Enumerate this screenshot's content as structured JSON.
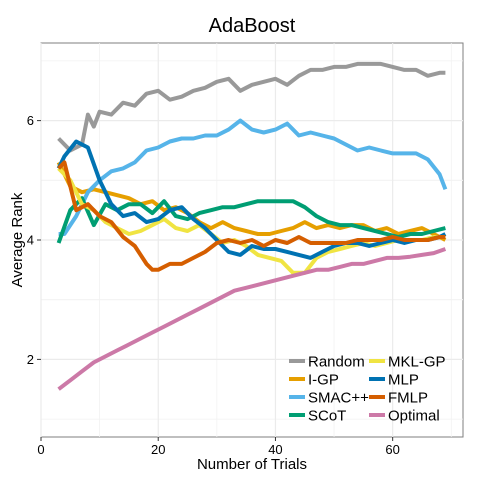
{
  "chart_data": {
    "type": "line",
    "title": "AdaBoost",
    "xlabel": "Number of Trials",
    "ylabel": "Average Rank",
    "xlim": [
      0,
      72
    ],
    "ylim": [
      0.7,
      7.3
    ],
    "xticks": [
      0,
      20,
      40,
      60
    ],
    "yticks": [
      2,
      4,
      6
    ],
    "grid": true,
    "legend_position": "bottom-right",
    "series": [
      {
        "name": "Random",
        "color": "#999999",
        "x": [
          3,
          5,
          7,
          8,
          9,
          10,
          12,
          14,
          16,
          18,
          20,
          22,
          24,
          26,
          28,
          30,
          32,
          34,
          36,
          38,
          40,
          42,
          44,
          46,
          48,
          50,
          52,
          54,
          56,
          58,
          60,
          62,
          64,
          66,
          68,
          69
        ],
        "values": [
          5.7,
          5.5,
          5.6,
          6.1,
          5.9,
          6.15,
          6.1,
          6.3,
          6.25,
          6.45,
          6.5,
          6.35,
          6.4,
          6.5,
          6.55,
          6.65,
          6.7,
          6.5,
          6.6,
          6.65,
          6.7,
          6.6,
          6.75,
          6.85,
          6.85,
          6.9,
          6.9,
          6.95,
          6.95,
          6.95,
          6.9,
          6.85,
          6.85,
          6.75,
          6.8,
          6.8
        ]
      },
      {
        "name": "I-GP",
        "color": "#E69F00",
        "x": [
          3,
          5,
          7,
          9,
          11,
          13,
          15,
          17,
          19,
          21,
          23,
          25,
          27,
          29,
          31,
          33,
          35,
          37,
          39,
          41,
          43,
          45,
          47,
          49,
          51,
          53,
          55,
          57,
          59,
          61,
          63,
          65,
          67,
          69
        ],
        "values": [
          5.3,
          4.9,
          4.8,
          4.85,
          4.8,
          4.75,
          4.7,
          4.6,
          4.65,
          4.5,
          4.55,
          4.45,
          4.3,
          4.2,
          4.3,
          4.2,
          4.15,
          4.1,
          4.1,
          4.15,
          4.2,
          4.3,
          4.2,
          4.25,
          4.2,
          4.25,
          4.25,
          4.15,
          4.2,
          4.1,
          4.15,
          4.2,
          4.1,
          4.0
        ]
      },
      {
        "name": "SMAC++",
        "color": "#56B4E9",
        "x": [
          3,
          4,
          6,
          8,
          10,
          12,
          14,
          16,
          18,
          20,
          22,
          24,
          26,
          28,
          30,
          32,
          34,
          36,
          38,
          40,
          42,
          44,
          46,
          48,
          50,
          52,
          54,
          56,
          58,
          60,
          62,
          64,
          66,
          68,
          69
        ],
        "values": [
          4.1,
          4.1,
          4.4,
          4.8,
          5.0,
          5.15,
          5.2,
          5.3,
          5.5,
          5.55,
          5.65,
          5.7,
          5.7,
          5.75,
          5.75,
          5.85,
          6.0,
          5.85,
          5.8,
          5.85,
          5.95,
          5.75,
          5.8,
          5.75,
          5.7,
          5.6,
          5.5,
          5.55,
          5.5,
          5.45,
          5.45,
          5.45,
          5.35,
          5.1,
          4.85
        ]
      },
      {
        "name": "SCoT",
        "color": "#009E73",
        "x": [
          3,
          5,
          7,
          9,
          11,
          13,
          15,
          17,
          19,
          21,
          23,
          25,
          27,
          29,
          31,
          33,
          35,
          37,
          39,
          41,
          43,
          45,
          47,
          49,
          51,
          53,
          55,
          57,
          59,
          61,
          63,
          65,
          67,
          69
        ],
        "values": [
          3.95,
          4.5,
          4.7,
          4.25,
          4.6,
          4.5,
          4.6,
          4.6,
          4.45,
          4.65,
          4.4,
          4.35,
          4.45,
          4.5,
          4.55,
          4.55,
          4.6,
          4.65,
          4.65,
          4.65,
          4.65,
          4.55,
          4.4,
          4.3,
          4.25,
          4.25,
          4.2,
          4.15,
          4.1,
          4.05,
          4.1,
          4.1,
          4.15,
          4.2
        ]
      },
      {
        "name": "MKL-GP",
        "color": "#F0E442",
        "x": [
          3,
          5,
          7,
          9,
          11,
          13,
          15,
          17,
          19,
          21,
          23,
          25,
          27,
          29,
          31,
          33,
          35,
          37,
          39,
          41,
          43,
          45,
          47,
          49,
          51,
          53,
          55,
          57,
          59,
          61,
          63,
          65,
          67,
          69
        ],
        "values": [
          5.2,
          5.0,
          4.6,
          4.5,
          4.3,
          4.2,
          4.1,
          4.15,
          4.25,
          4.35,
          4.2,
          4.15,
          4.25,
          4.1,
          3.95,
          4.0,
          3.9,
          3.75,
          3.7,
          3.65,
          3.45,
          3.45,
          3.7,
          3.8,
          3.85,
          3.9,
          3.95,
          3.9,
          3.95,
          4.0,
          4.0,
          4.0,
          4.05,
          4.05
        ]
      },
      {
        "name": "MLP",
        "color": "#0072B2",
        "x": [
          3,
          4,
          6,
          8,
          10,
          12,
          14,
          16,
          18,
          20,
          22,
          24,
          26,
          28,
          30,
          32,
          34,
          36,
          38,
          40,
          42,
          44,
          46,
          48,
          50,
          52,
          54,
          56,
          58,
          60,
          62,
          64,
          66,
          68,
          69
        ],
        "values": [
          5.2,
          5.4,
          5.65,
          5.55,
          5.0,
          4.6,
          4.4,
          4.45,
          4.3,
          4.35,
          4.5,
          4.55,
          4.35,
          4.2,
          4.0,
          3.8,
          3.75,
          3.9,
          3.85,
          3.85,
          3.8,
          3.75,
          3.7,
          3.8,
          3.9,
          3.95,
          3.95,
          3.9,
          3.95,
          4.0,
          3.95,
          4.0,
          4.0,
          4.05,
          4.1
        ]
      },
      {
        "name": "FMLP",
        "color": "#D55E00",
        "x": [
          3,
          4,
          6,
          8,
          10,
          12,
          14,
          16,
          18,
          19,
          20,
          22,
          24,
          26,
          28,
          30,
          32,
          34,
          36,
          38,
          40,
          42,
          44,
          46,
          48,
          50,
          52,
          54,
          56,
          58,
          60,
          62,
          64,
          66,
          68,
          69
        ],
        "values": [
          5.2,
          5.3,
          4.5,
          4.6,
          4.4,
          4.3,
          4.05,
          3.9,
          3.6,
          3.5,
          3.5,
          3.6,
          3.6,
          3.7,
          3.8,
          3.95,
          4.0,
          3.95,
          4.0,
          3.9,
          4.0,
          3.95,
          4.05,
          3.95,
          3.95,
          3.95,
          3.95,
          4.0,
          4.0,
          4.0,
          4.05,
          4.0,
          4.0,
          4.0,
          4.05,
          4.05
        ]
      },
      {
        "name": "Optimal",
        "color": "#CC79A7",
        "x": [
          3,
          5,
          7,
          9,
          11,
          13,
          15,
          17,
          19,
          21,
          23,
          25,
          27,
          29,
          31,
          33,
          35,
          37,
          39,
          41,
          43,
          45,
          47,
          49,
          51,
          53,
          55,
          57,
          59,
          61,
          63,
          65,
          67,
          69
        ],
        "values": [
          1.5,
          1.65,
          1.8,
          1.95,
          2.05,
          2.15,
          2.25,
          2.35,
          2.45,
          2.55,
          2.65,
          2.75,
          2.85,
          2.95,
          3.05,
          3.15,
          3.2,
          3.25,
          3.3,
          3.35,
          3.4,
          3.45,
          3.5,
          3.5,
          3.55,
          3.6,
          3.6,
          3.65,
          3.7,
          3.7,
          3.72,
          3.75,
          3.78,
          3.85
        ]
      }
    ]
  }
}
